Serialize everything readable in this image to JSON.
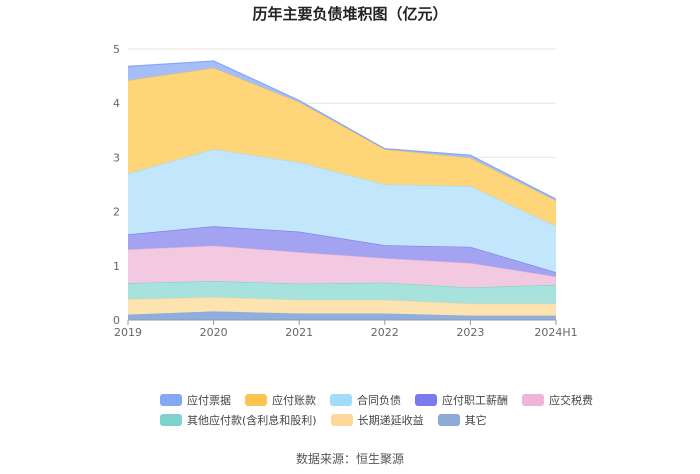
{
  "title": "历年主要负债堆积图（亿元）",
  "source": "数据来源：恒生聚源",
  "chart_data": {
    "type": "area",
    "stacked": true,
    "x": [
      "2019",
      "2020",
      "2021",
      "2022",
      "2023",
      "2024H1"
    ],
    "ylim": [
      0,
      5
    ],
    "yticks": [
      0,
      1,
      2,
      3,
      4,
      5
    ],
    "grid": true,
    "legend_position": "bottom",
    "series": [
      {
        "name": "其它",
        "color": "#8eaee0",
        "values": [
          0.1,
          0.16,
          0.12,
          0.12,
          0.08,
          0.08
        ]
      },
      {
        "name": "长期递延收益",
        "color": "#fde3b0",
        "values": [
          0.28,
          0.26,
          0.25,
          0.25,
          0.22,
          0.22
        ]
      },
      {
        "name": "其他应付款(含利息和股利)",
        "color": "#a8e2dd",
        "values": [
          0.3,
          0.3,
          0.3,
          0.32,
          0.3,
          0.35
        ]
      },
      {
        "name": "应交税费",
        "color": "#f3c9e1",
        "values": [
          0.62,
          0.65,
          0.58,
          0.45,
          0.45,
          0.15
        ]
      },
      {
        "name": "应付职工薪酬",
        "color": "#a3a3f2",
        "values": [
          0.28,
          0.36,
          0.38,
          0.24,
          0.3,
          0.08
        ]
      },
      {
        "name": "合同负债",
        "color": "#c2e6fb",
        "values": [
          1.12,
          1.42,
          1.28,
          1.12,
          1.12,
          0.85
        ]
      },
      {
        "name": "应付账款",
        "color": "#fed679",
        "values": [
          1.72,
          1.5,
          1.11,
          0.65,
          0.52,
          0.47
        ]
      },
      {
        "name": "应付票据",
        "color": "#a6bef8",
        "values": [
          0.26,
          0.13,
          0.03,
          0.01,
          0.05,
          0.03
        ]
      }
    ],
    "legend_order": [
      "应付票据",
      "应付账款",
      "合同负债",
      "应付职工薪酬",
      "应交税费",
      "其他应付款(含利息和股利)",
      "长期递延收益",
      "其它"
    ],
    "legend_colors": {
      "应付票据": "#86a7f3",
      "应付账款": "#fdc550",
      "合同负债": "#a3dcf9",
      "应付职工薪酬": "#7b7bef",
      "应交税费": "#f0b5d6",
      "其他应付款(含利息和股利)": "#7fd3cc",
      "长期递延收益": "#fcd79a",
      "其它": "#8eaad7"
    }
  }
}
